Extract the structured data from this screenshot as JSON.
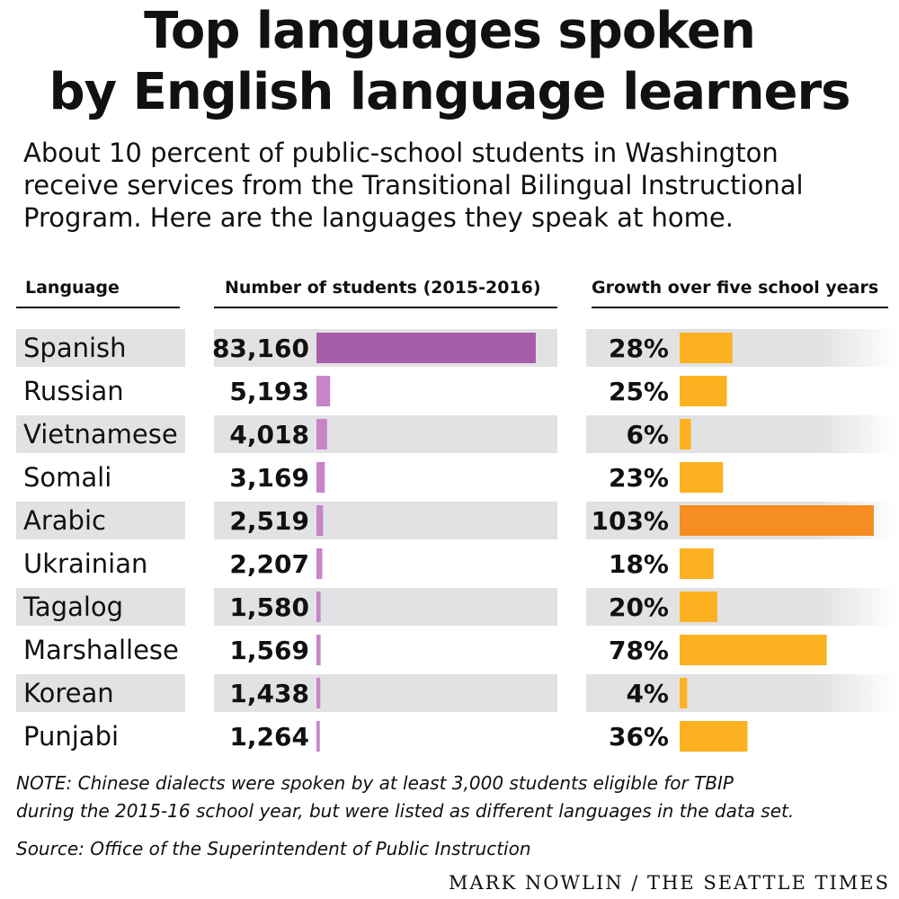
{
  "title_line1": "Top languages spoken",
  "title_line2": "by English language learners",
  "subtitle_line1": "About 10 percent of public-school students in Washington",
  "subtitle_line2": "receive services from the Transitional Bilingual Instructional",
  "subtitle_line3": "Program. Here are the languages they speak at home.",
  "headers": {
    "language": "Language",
    "students": "Number of students (2015-2016)",
    "growth": "Growth over five school years"
  },
  "colors": {
    "students_bar": "#a65ea8",
    "students_bar_small": "#c784c9",
    "growth_bar": "#fbb120",
    "growth_bar_highlight": "#f58d22",
    "row_band": "#e2e2e4"
  },
  "chart_data": {
    "type": "bar",
    "categories": [
      "Spanish",
      "Russian",
      "Vietnamese",
      "Somali",
      "Arabic",
      "Ukrainian",
      "Tagalog",
      "Marshallese",
      "Korean",
      "Punjabi"
    ],
    "series": [
      {
        "name": "Number of students (2015-2016)",
        "values": [
          83160,
          5193,
          4018,
          3169,
          2519,
          2207,
          1580,
          1569,
          1438,
          1264
        ],
        "labels": [
          "83,160",
          "5,193",
          "4,018",
          "3,169",
          "2,519",
          "2,207",
          "1,580",
          "1,569",
          "1,438",
          "1,264"
        ]
      },
      {
        "name": "Growth over five school years",
        "values": [
          28,
          25,
          6,
          23,
          103,
          18,
          20,
          78,
          4,
          36
        ],
        "labels": [
          "28%",
          "25%",
          "6%",
          "23%",
          "103%",
          "18%",
          "20%",
          "78%",
          "4%",
          "36%"
        ]
      }
    ],
    "highlight_category": "Arabic"
  },
  "note_line1": "NOTE: Chinese dialects were spoken by at least 3,000 students eligible for TBIP",
  "note_line2": "during the 2015-16 school year, but were listed as different languages in the data set.",
  "source": "Source: Office of the Superintendent of Public Instruction",
  "credit": "MARK NOWLIN / THE SEATTLE TIMES"
}
